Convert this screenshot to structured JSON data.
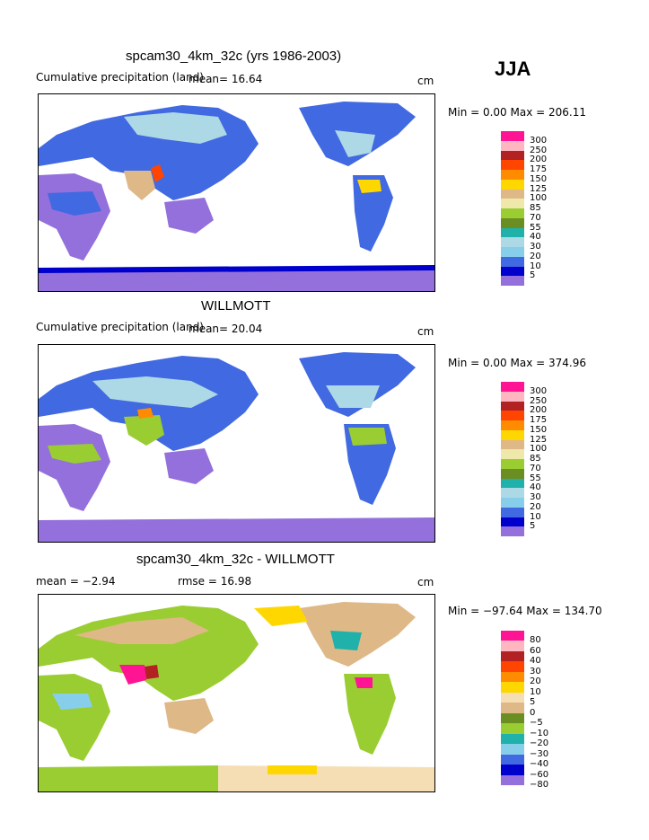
{
  "season": "JJA",
  "panels": [
    {
      "title": "spcam30_4km_32c (yrs 1986-2003)",
      "subtitle": "Cumulative precipitation (land)",
      "mean_text": "mean=   16.64",
      "units": "cm",
      "minmax": "Min =    0.00 Max = 206.11",
      "colorbar_labels": [
        "300",
        "250",
        "200",
        "175",
        "150",
        "125",
        "100",
        "85",
        "70",
        "55",
        "40",
        "30",
        "20",
        "10",
        "5"
      ]
    },
    {
      "title": "WILLMOTT",
      "subtitle": "Cumulative precipitation (land)",
      "mean_text": "mean=   20.04",
      "units": "cm",
      "minmax": "Min =    0.00 Max = 374.96",
      "colorbar_labels": [
        "300",
        "250",
        "200",
        "175",
        "150",
        "125",
        "100",
        "85",
        "70",
        "55",
        "40",
        "30",
        "20",
        "10",
        "5"
      ]
    },
    {
      "title": "spcam30_4km_32c - WILLMOTT",
      "mean_text": "mean =   −2.94",
      "rmse_text": "rmse =   16.98",
      "units": "cm",
      "minmax": "Min = −97.64 Max = 134.70",
      "colorbar_labels": [
        "80",
        "60",
        "40",
        "30",
        "20",
        "10",
        "5",
        "0",
        "−5",
        "−10",
        "−20",
        "−30",
        "−40",
        "−60",
        "−80"
      ]
    }
  ],
  "colors": {
    "precip_scale": [
      "#ff1493",
      "#ffb6c1",
      "#b22222",
      "#ff4500",
      "#ff8c00",
      "#ffd700",
      "#deb887",
      "#eee8aa",
      "#9acd32",
      "#6b8e23",
      "#20b2aa",
      "#add8e6",
      "#87ceeb",
      "#4169e1",
      "#0000cd",
      "#9370db"
    ],
    "diff_scale": [
      "#ff1493",
      "#ffb6c1",
      "#b22222",
      "#ff4500",
      "#ff8c00",
      "#ffd700",
      "#f5deb3",
      "#deb887",
      "#6b8e23",
      "#9acd32",
      "#20b2aa",
      "#87ceeb",
      "#4169e1",
      "#0000cd",
      "#9370db"
    ]
  },
  "chart_data": [
    {
      "type": "heatmap",
      "title": "spcam30_4km_32c (yrs 1986-2003)",
      "subtitle": "Cumulative precipitation (land)",
      "units": "cm",
      "mean": 16.64,
      "min": 0.0,
      "max": 206.11,
      "levels": [
        5,
        10,
        20,
        30,
        40,
        55,
        70,
        85,
        100,
        125,
        150,
        175,
        200,
        250,
        300
      ]
    },
    {
      "type": "heatmap",
      "title": "WILLMOTT",
      "subtitle": "Cumulative precipitation (land)",
      "units": "cm",
      "mean": 20.04,
      "min": 0.0,
      "max": 374.96,
      "levels": [
        5,
        10,
        20,
        30,
        40,
        55,
        70,
        85,
        100,
        125,
        150,
        175,
        200,
        250,
        300
      ]
    },
    {
      "type": "heatmap",
      "title": "spcam30_4km_32c - WILLMOTT",
      "units": "cm",
      "mean": -2.94,
      "rmse": 16.98,
      "min": -97.64,
      "max": 134.7,
      "levels": [
        -80,
        -60,
        -40,
        -30,
        -20,
        -10,
        -5,
        0,
        5,
        10,
        20,
        30,
        40,
        60,
        80
      ]
    }
  ]
}
